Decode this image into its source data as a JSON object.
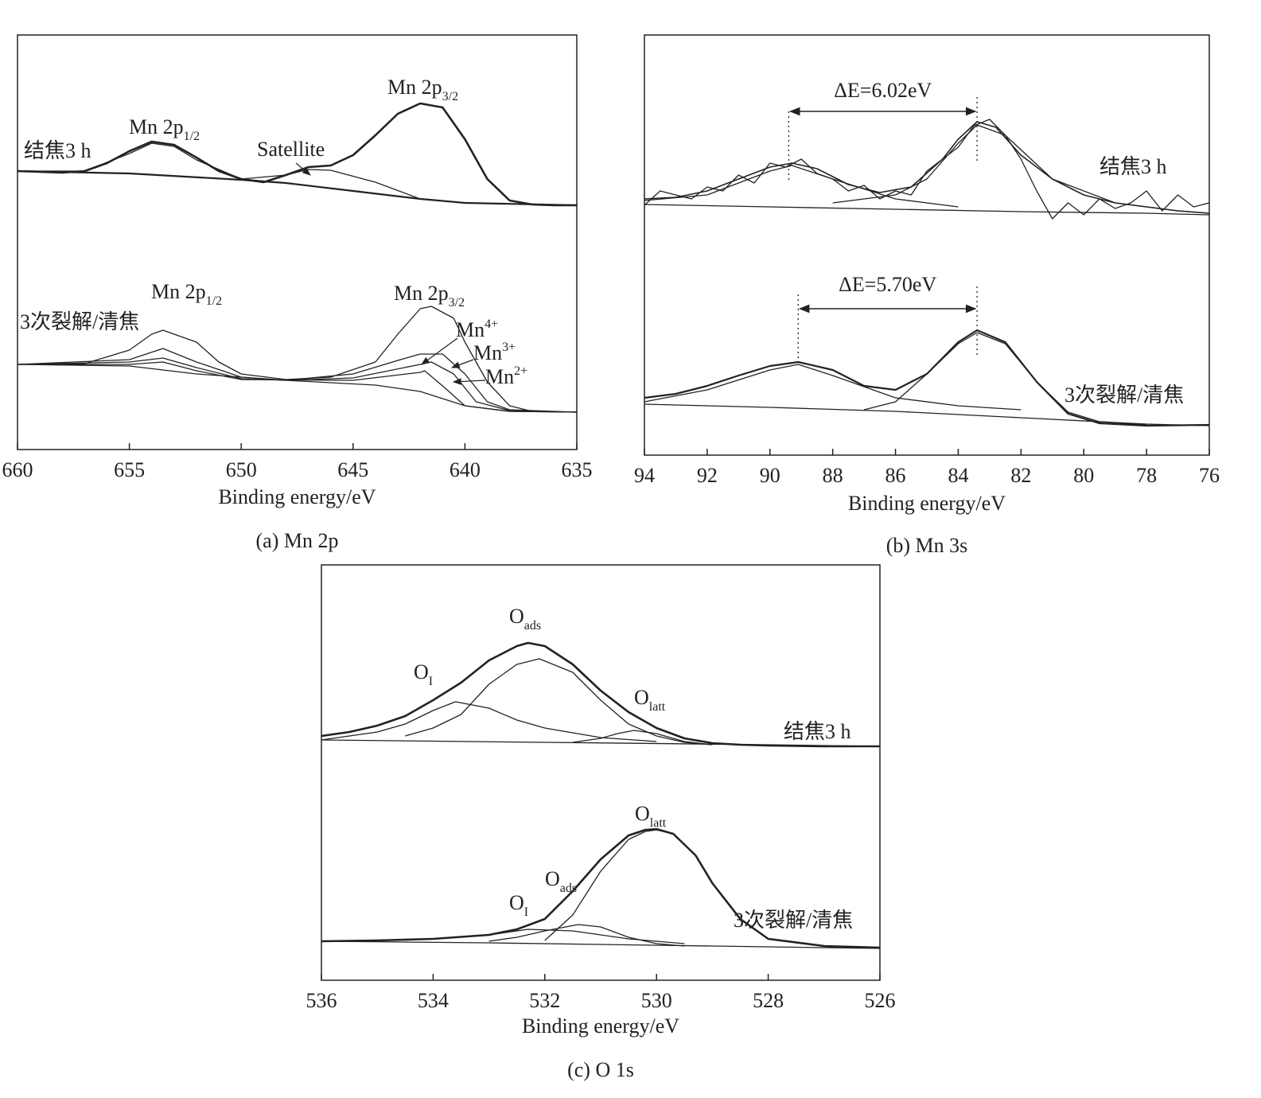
{
  "chart_data": [
    {
      "type": "line",
      "caption": "(a) Mn 2p",
      "x_label": "Binding energy/eV",
      "xlim": [
        660,
        635
      ],
      "ylim": [
        0,
        521
      ],
      "xticks": [
        660,
        655,
        650,
        645,
        640,
        635
      ],
      "color": "#222",
      "series": [
        {
          "line_width": 2.6,
          "x": [
            660,
            659,
            658,
            657,
            656,
            655,
            654,
            653,
            652,
            651,
            650,
            649,
            648,
            647,
            646,
            645,
            644,
            643,
            642,
            641,
            640,
            639,
            638,
            637,
            636,
            635
          ],
          "values": [
            350,
            349,
            348,
            350,
            360,
            375,
            387,
            383,
            367,
            350,
            340,
            336,
            345,
            355,
            357,
            370,
            395,
            422,
            435,
            430,
            390,
            340,
            313,
            308,
            307,
            307
          ]
        },
        {
          "line_width": 2.2,
          "x": [
            660,
            655,
            650,
            648,
            645,
            642,
            640,
            635
          ],
          "values": [
            350,
            347,
            339,
            335,
            325,
            315,
            310,
            307
          ]
        },
        {
          "line_width": 1.3,
          "x": [
            660,
            657,
            655,
            654,
            653,
            652,
            650,
            648
          ],
          "values": [
            350,
            350,
            372,
            385,
            381,
            364,
            340,
            335
          ]
        },
        {
          "line_width": 1.3,
          "x": [
            650,
            648,
            647,
            646,
            644,
            642
          ],
          "values": [
            340,
            345,
            352,
            351,
            336,
            315
          ]
        },
        {
          "line_width": 1.3,
          "x": [
            660,
            657,
            655,
            654,
            653.5,
            652,
            651,
            650,
            648,
            646,
            644,
            643,
            642,
            641.5,
            640.5,
            640,
            639,
            638,
            637,
            635
          ],
          "values": [
            107,
            108,
            125,
            145,
            150,
            135,
            110,
            95,
            88,
            91,
            110,
            145,
            177,
            180,
            165,
            135,
            85,
            55,
            48,
            47
          ]
        },
        {
          "line_width": 1.3,
          "x": [
            660,
            655,
            653.5,
            652,
            650,
            648,
            645,
            643,
            642,
            641,
            640,
            639,
            638,
            635
          ],
          "values": [
            107,
            113,
            127,
            110,
            91,
            87,
            95,
            112,
            120,
            120,
            95,
            60,
            50,
            47
          ]
        },
        {
          "line_width": 1.3,
          "x": [
            660,
            655,
            653.5,
            652,
            650,
            648,
            645,
            642,
            641.5,
            640.5,
            639.5,
            638,
            635
          ],
          "values": [
            107,
            110,
            115,
            103,
            89,
            87,
            90,
            107,
            110,
            95,
            60,
            49,
            47
          ]
        },
        {
          "line_width": 1.3,
          "x": [
            660,
            655,
            653.5,
            652,
            650,
            645,
            642,
            641.8,
            641,
            640,
            638,
            635
          ],
          "values": [
            107,
            107,
            110,
            99,
            88,
            87,
            97,
            99,
            80,
            55,
            48,
            47
          ]
        },
        {
          "line_width": 1.3,
          "x": [
            660,
            655,
            652,
            648,
            644,
            642,
            640,
            638,
            635
          ],
          "values": [
            107,
            105,
            95,
            87,
            81,
            73,
            55,
            48,
            47
          ]
        }
      ],
      "annotations": [
        {
          "text": "结焦3 h"
        },
        {
          "text": "Mn 2p",
          "sub": "1/2"
        },
        {
          "text": "Satellite"
        },
        {
          "text": "Mn 2p",
          "sub": "3/2"
        },
        {
          "text": "3次裂解/清焦"
        },
        {
          "text": "Mn 2p",
          "sub": "1/2"
        },
        {
          "text": "Mn 2p",
          "sub": "3/2"
        },
        {
          "text": "Mn",
          "sup": "4+"
        },
        {
          "text": "Mn",
          "sup": "3+"
        },
        {
          "text": "Mn",
          "sup": "2+"
        }
      ]
    },
    {
      "type": "line",
      "caption": "(b) Mn 3s",
      "x_label": "Binding energy/eV",
      "xlim": [
        94,
        76
      ],
      "ylim": [
        0,
        528
      ],
      "xticks": [
        94,
        92,
        90,
        88,
        86,
        84,
        82,
        80,
        78,
        76
      ],
      "color": "#222",
      "series": [
        {
          "line_width": 1.3,
          "x": [
            94,
            93.5,
            93,
            92.5,
            92,
            91.5,
            91,
            90.5,
            90,
            89.5,
            89,
            88.5,
            88,
            87.5,
            87,
            86.5,
            86,
            85.5,
            85,
            84.5,
            84,
            83.5,
            83,
            82.5,
            82,
            81.5,
            81,
            80.5,
            80,
            79.5,
            79,
            78.5,
            78,
            77.5,
            77,
            76.5,
            76
          ],
          "values": [
            314,
            332,
            327,
            322,
            337,
            332,
            352,
            342,
            367,
            362,
            372,
            354,
            347,
            332,
            339,
            322,
            332,
            327,
            357,
            372,
            387,
            414,
            422,
            402,
            372,
            332,
            297,
            317,
            302,
            322,
            310,
            317,
            332,
            307,
            327,
            312,
            317
          ]
        },
        {
          "line_width": 1.6,
          "x": [
            94,
            93,
            92,
            91,
            90,
            89.3,
            88.5,
            87.5,
            86.5,
            85.5,
            84.5,
            84,
            83.4,
            82.8,
            82,
            81,
            80,
            79,
            78,
            77,
            76
          ],
          "values": [
            322,
            324,
            332,
            347,
            362,
            367,
            360,
            340,
            330,
            337,
            372,
            397,
            419,
            412,
            377,
            347,
            327,
            317,
            312,
            307,
            304
          ]
        },
        {
          "line_width": 1.3,
          "x": [
            94,
            92,
            90,
            89.3,
            88,
            86,
            84
          ],
          "values": [
            320,
            327,
            357,
            364,
            347,
            322,
            312
          ]
        },
        {
          "line_width": 1.3,
          "x": [
            88,
            86,
            85,
            84,
            83.4,
            82.5,
            81,
            79,
            77,
            76
          ],
          "values": [
            317,
            327,
            347,
            392,
            415,
            402,
            347,
            317,
            307,
            304
          ]
        },
        {
          "line_width": 1.3,
          "x": [
            94,
            90,
            86,
            82,
            78,
            76
          ],
          "values": [
            315,
            312,
            309,
            306,
            304,
            302
          ]
        },
        {
          "line_width": 2.2,
          "x": [
            94,
            93,
            92,
            91,
            90,
            89.1,
            88,
            87,
            86,
            85,
            84,
            83.4,
            82.5,
            81.5,
            80.5,
            79.5,
            78,
            76
          ],
          "values": [
            72,
            77,
            87,
            100,
            112,
            117,
            107,
            87,
            82,
            102,
            142,
            157,
            142,
            92,
            52,
            40,
            37,
            38
          ]
        },
        {
          "line_width": 1.3,
          "x": [
            94,
            92,
            90,
            89.1,
            88,
            86,
            84,
            82
          ],
          "values": [
            67,
            82,
            107,
            114,
            100,
            72,
            62,
            57
          ]
        },
        {
          "line_width": 1.3,
          "x": [
            87,
            86,
            85,
            84,
            83.4,
            82.5,
            81.5,
            80.5,
            79.5,
            78
          ],
          "values": [
            57,
            67,
            102,
            140,
            154,
            140,
            92,
            54,
            42,
            38
          ]
        },
        {
          "line_width": 1.3,
          "x": [
            94,
            90,
            86,
            82,
            78,
            76
          ],
          "values": [
            64,
            60,
            55,
            47,
            39,
            37
          ]
        }
      ],
      "markers": [
        {
          "label": "ΔE=6.02eV",
          "x": [
            89.4,
            83.4
          ]
        },
        {
          "label": "ΔE=5.70eV",
          "x": [
            89.1,
            83.4
          ]
        }
      ],
      "annotations": [
        {
          "text": "结焦3 h"
        },
        {
          "text": "3次裂解/清焦"
        }
      ]
    },
    {
      "type": "line",
      "caption": "(c) O 1s",
      "x_label": "Binding energy/eV",
      "xlim": [
        536,
        526
      ],
      "ylim": [
        0,
        522
      ],
      "xticks": [
        536,
        534,
        532,
        530,
        528,
        526
      ],
      "color": "#222",
      "series": [
        {
          "line_width": 2.6,
          "x": [
            536,
            535.5,
            535,
            534.5,
            534,
            533.5,
            533,
            532.5,
            532.3,
            532,
            531.5,
            531,
            530.5,
            530,
            529.5,
            529,
            528.5,
            528,
            527,
            526
          ],
          "values": [
            307,
            312,
            320,
            332,
            352,
            374,
            402,
            420,
            424,
            420,
            397,
            364,
            337,
            317,
            304,
            298,
            296,
            295,
            294,
            294
          ]
        },
        {
          "line_width": 1.3,
          "x": [
            536,
            535,
            534.5,
            534,
            533.6,
            533,
            532.5,
            532,
            531,
            530
          ],
          "values": [
            302,
            312,
            322,
            339,
            350,
            342,
            327,
            317,
            305,
            300
          ]
        },
        {
          "line_width": 1.3,
          "x": [
            534.5,
            534,
            533.5,
            533,
            532.5,
            532.1,
            531.5,
            531,
            530.5,
            530,
            529.5,
            529
          ],
          "values": [
            307,
            317,
            334,
            372,
            397,
            404,
            387,
            352,
            322,
            307,
            299,
            296
          ]
        },
        {
          "line_width": 1.3,
          "x": [
            531.5,
            531,
            530.7,
            530.4,
            530,
            529.5,
            529
          ],
          "values": [
            299,
            304,
            310,
            314,
            310,
            300,
            296
          ]
        },
        {
          "line_width": 1.3,
          "x": [
            536,
            532,
            528,
            526
          ],
          "values": [
            302,
            299,
            296,
            294
          ]
        },
        {
          "line_width": 2.6,
          "x": [
            536,
            535,
            534,
            533,
            532.5,
            532,
            531.5,
            531,
            530.5,
            530.2,
            530,
            529.7,
            529.3,
            529,
            528.5,
            528,
            527,
            526
          ],
          "values": [
            49,
            50,
            52,
            57,
            64,
            77,
            112,
            152,
            182,
            189,
            190,
            184,
            157,
            122,
            77,
            52,
            43,
            41
          ]
        },
        {
          "line_width": 1.3,
          "x": [
            536,
            534,
            533,
            532.3,
            531.5,
            530.5,
            529.5
          ],
          "values": [
            49,
            52,
            57,
            64,
            62,
            52,
            46
          ]
        },
        {
          "line_width": 1.3,
          "x": [
            533,
            532.5,
            532,
            531.4,
            531,
            530.5,
            530,
            529.5
          ],
          "values": [
            49,
            54,
            62,
            70,
            67,
            54,
            46,
            43
          ]
        },
        {
          "line_width": 1.3,
          "x": [
            532,
            531.5,
            531,
            530.5,
            530.2,
            530,
            529.7,
            529.3,
            529,
            528.5,
            528,
            527,
            526
          ],
          "values": [
            50,
            82,
            137,
            177,
            187,
            189,
            184,
            157,
            122,
            77,
            52,
            43,
            41
          ]
        },
        {
          "line_width": 1.3,
          "x": [
            536,
            533,
            530,
            528,
            526
          ],
          "values": [
            49,
            47,
            44,
            42,
            40
          ]
        }
      ],
      "annotations": [
        {
          "text": "O",
          "sub": "I"
        },
        {
          "text": "O",
          "sub": "ads"
        },
        {
          "text": "O",
          "sub": "latt"
        },
        {
          "text": "结焦3 h"
        },
        {
          "text": "O",
          "sub": "latt"
        },
        {
          "text": "O",
          "sub": "ads"
        },
        {
          "text": "O",
          "sub": "I"
        },
        {
          "text": "3次裂解/清焦"
        }
      ]
    }
  ]
}
